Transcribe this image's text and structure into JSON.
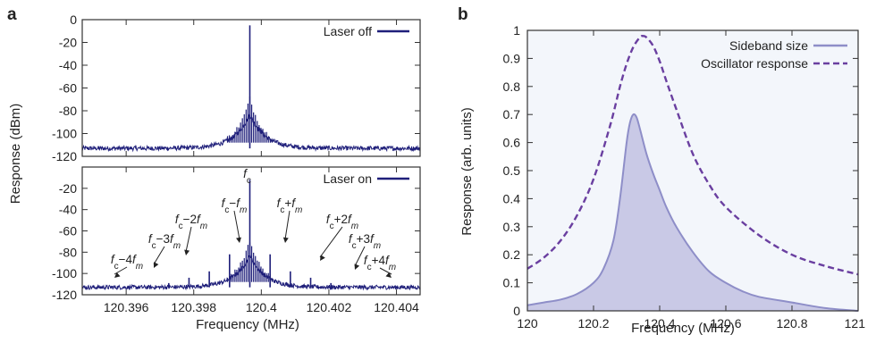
{
  "chart_data": [
    {
      "panel": "a",
      "type": "line",
      "subplots": [
        {
          "legend": "Laser off",
          "ylim": [
            -120,
            0
          ],
          "yticks": [
            0,
            -20,
            -40,
            -60,
            -80,
            -100,
            -120
          ],
          "noise_floor": -113,
          "peaks": [
            {
              "x": 120.39966,
              "y": -5
            }
          ],
          "annotations": []
        },
        {
          "legend": "Laser on",
          "ylim": [
            -120,
            0
          ],
          "yticks": [
            -20,
            -40,
            -60,
            -80,
            -100,
            -120
          ],
          "noise_floor": -113,
          "peaks": [
            {
              "x": 120.39966,
              "y": -12,
              "label": "fc"
            },
            {
              "x": 120.39906,
              "y": -82,
              "label": "fc−fm"
            },
            {
              "x": 120.40026,
              "y": -82,
              "label": "fc+fm"
            },
            {
              "x": 120.39846,
              "y": -98,
              "label": "fc−2fm"
            },
            {
              "x": 120.40086,
              "y": -98,
              "label": "fc+2fm"
            },
            {
              "x": 120.39786,
              "y": -104,
              "label": "fc−3fm"
            },
            {
              "x": 120.40146,
              "y": -104,
              "label": "fc+3fm"
            },
            {
              "x": 120.39726,
              "y": -109,
              "label": "fc−4fm"
            },
            {
              "x": 120.40206,
              "y": -109,
              "label": "fc+4fm"
            }
          ]
        }
      ],
      "xlim": [
        120.3947,
        120.4047
      ],
      "xticks": [
        120.396,
        120.398,
        120.4,
        120.402,
        120.404
      ],
      "xticklabels": [
        "120.396",
        "120.398",
        "120.4",
        "120.402",
        "120.404"
      ],
      "xlabel": "Frequency (MHz)",
      "ylabel": "Response (dBm)",
      "color": "#1f1f7a"
    },
    {
      "panel": "b",
      "type": "area",
      "xlim": [
        120,
        121
      ],
      "ylim": [
        0,
        1
      ],
      "xticks": [
        120,
        120.2,
        120.4,
        120.6,
        120.8,
        121
      ],
      "xticklabels": [
        "120",
        "120.2",
        "120.4",
        "120.6",
        "120.8",
        "121"
      ],
      "yticks": [
        0,
        0.1,
        0.2,
        0.3,
        0.4,
        0.5,
        0.6,
        0.7,
        0.8,
        0.9,
        1
      ],
      "yticklabels": [
        "0",
        "0.1",
        "0.2",
        "0.3",
        "0.4",
        "0.5",
        "0.6",
        "0.7",
        "0.8",
        "0.9",
        "1"
      ],
      "xlabel": "Frequency (MHz)",
      "ylabel": "Response (arb. units)",
      "series": [
        {
          "name": "Sideband size",
          "style": "solid-filled",
          "color": "#8e8ec8",
          "fill": "#c9c9e6",
          "x": [
            120.0,
            120.05,
            120.1,
            120.15,
            120.2,
            120.23,
            120.26,
            120.28,
            120.3,
            120.31,
            120.32,
            120.33,
            120.34,
            120.36,
            120.38,
            120.4,
            120.42,
            120.45,
            120.5,
            120.55,
            120.6,
            120.65,
            120.7,
            120.8,
            120.9,
            121.0
          ],
          "y": [
            0.02,
            0.03,
            0.04,
            0.06,
            0.1,
            0.15,
            0.25,
            0.4,
            0.6,
            0.67,
            0.7,
            0.69,
            0.65,
            0.56,
            0.49,
            0.43,
            0.37,
            0.3,
            0.21,
            0.14,
            0.1,
            0.07,
            0.05,
            0.03,
            0.01,
            0.0
          ]
        },
        {
          "name": "Oscillator response",
          "style": "dashed",
          "color": "#6a3fa0",
          "x": [
            120.0,
            120.05,
            120.1,
            120.15,
            120.2,
            120.25,
            120.28,
            120.3,
            120.32,
            120.34,
            120.35,
            120.36,
            120.38,
            120.4,
            120.42,
            120.45,
            120.5,
            120.55,
            120.6,
            120.7,
            120.8,
            120.9,
            121.0
          ],
          "y": [
            0.15,
            0.19,
            0.25,
            0.34,
            0.47,
            0.66,
            0.8,
            0.88,
            0.94,
            0.975,
            0.98,
            0.975,
            0.945,
            0.89,
            0.82,
            0.72,
            0.56,
            0.45,
            0.37,
            0.27,
            0.2,
            0.16,
            0.13
          ]
        }
      ]
    }
  ]
}
